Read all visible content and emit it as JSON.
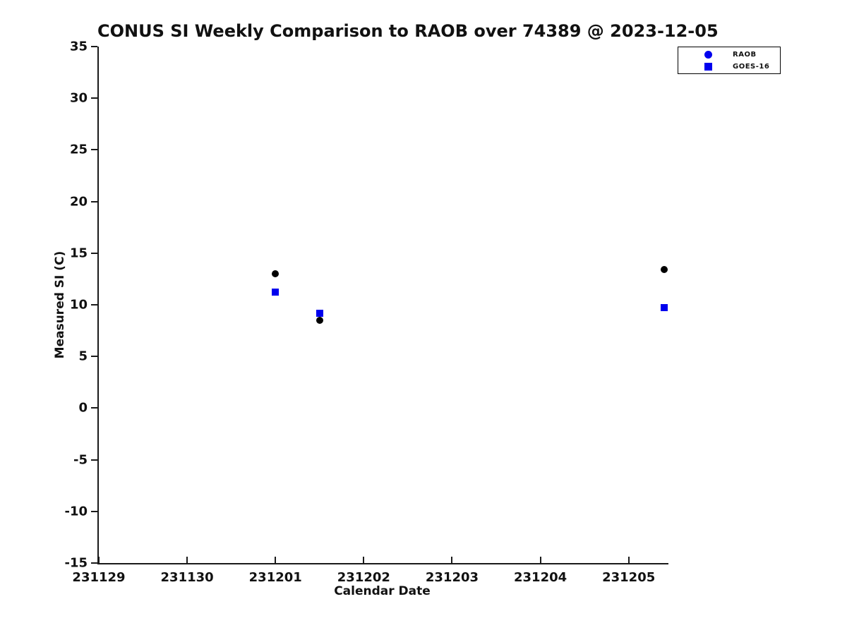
{
  "title": "CONUS SI Weekly Comparison to RAOB over 74389 @ 2023-12-05",
  "chart_data": {
    "type": "scatter",
    "title": "CONUS SI Weekly Comparison to RAOB over 74389 @ 2023-12-05",
    "xlabel": "Calendar Date",
    "ylabel": "Measured SI (C)",
    "x_tick_labels": [
      "231129",
      "231130",
      "231201",
      "231202",
      "231203",
      "231204",
      "231205"
    ],
    "x_axis_days_span": 6.45,
    "ylim": [
      -15,
      35
    ],
    "y_ticks": [
      35,
      30,
      25,
      20,
      15,
      10,
      5,
      0,
      -5,
      -10,
      -15
    ],
    "grid": false,
    "legend_position": "top-right",
    "series": [
      {
        "name": "RAOB",
        "marker": "circle",
        "color": "#000000",
        "legend_color": "#0000ee",
        "points": [
          {
            "x": 231201.0,
            "y": 13.0
          },
          {
            "x": 231201.5,
            "y": 8.5
          },
          {
            "x": 231205.4,
            "y": 13.4
          }
        ]
      },
      {
        "name": "GOES-16",
        "marker": "square",
        "color": "#0000ee",
        "legend_color": "#0000ee",
        "points": [
          {
            "x": 231201.0,
            "y": 11.2
          },
          {
            "x": 231201.5,
            "y": 9.2
          },
          {
            "x": 231205.4,
            "y": 9.7
          }
        ]
      }
    ]
  }
}
